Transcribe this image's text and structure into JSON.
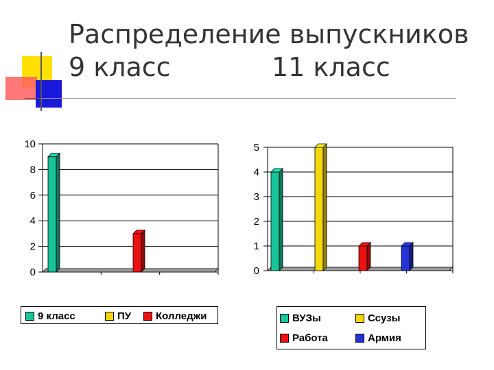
{
  "title": {
    "line1": "Распределение выпускников",
    "line2_left": "9 класс",
    "line2_right": "11 класс"
  },
  "colors": {
    "green": "#19c49a",
    "yellow": "#f4d70a",
    "red": "#ee1111",
    "blue": "#2433d6",
    "deco_yellow": "#ffe000",
    "deco_red": "#ff6060",
    "deco_blue": "#1a1adc"
  },
  "chart_data": [
    {
      "type": "bar",
      "categories": [
        "9 класс",
        "ПУ",
        "Колледжи"
      ],
      "values": [
        9,
        0,
        3
      ],
      "ylim": [
        0,
        10
      ],
      "yticks": [
        "0",
        "2",
        "4",
        "6",
        "8",
        "10"
      ],
      "grid": true,
      "legend": [
        "9 класс",
        "ПУ",
        "Колледжи"
      ],
      "legend_position": "bottom"
    },
    {
      "type": "bar",
      "categories": [
        "ВУЗы",
        "Ссузы",
        "Работа",
        "Армия"
      ],
      "values": [
        4,
        5,
        1,
        1
      ],
      "ylim": [
        0,
        5
      ],
      "yticks": [
        "0",
        "1",
        "2",
        "3",
        "4",
        "5"
      ],
      "grid": true,
      "legend": [
        "ВУЗы",
        "Ссузы",
        "Работа",
        "Армия"
      ],
      "legend_position": "bottom"
    }
  ]
}
